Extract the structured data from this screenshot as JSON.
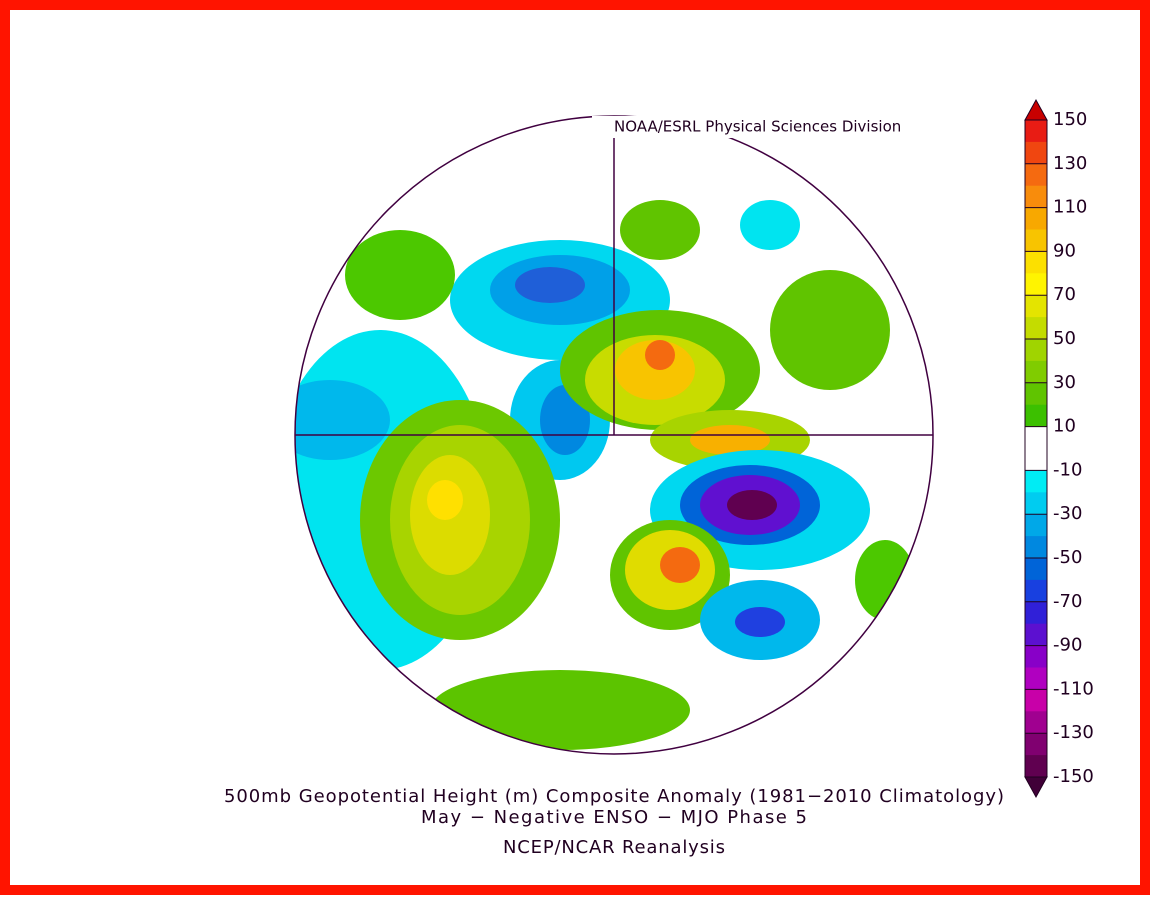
{
  "header": {
    "credit": "NOAA/ESRL Physical Sciences Division"
  },
  "title": [
    "500mb Geopotential Height (m) Composite Anomaly (1981−2010 Climatology)",
    "May − Negative ENSO − MJO Phase 5"
  ],
  "source": "NCEP/NCAR Reanalysis",
  "colorbar": {
    "ticks": [
      150,
      130,
      110,
      90,
      70,
      50,
      30,
      10,
      -10,
      -30,
      -50,
      -70,
      -90,
      -110,
      -130,
      -150
    ],
    "over_color": "#c80000",
    "under_color": "#400038",
    "colors": [
      "#e81c14",
      "#f04610",
      "#f56a10",
      "#f88c0c",
      "#f8a800",
      "#f8c400",
      "#fce000",
      "#fff400",
      "#e4e400",
      "#c4dc00",
      "#a0d400",
      "#80cc00",
      "#60c400",
      "#3cc000",
      "#ffffff",
      "#ffffff",
      "#00ecf4",
      "#00ccf0",
      "#00a8e8",
      "#0088e0",
      "#0064d8",
      "#1840e0",
      "#3020d8",
      "#5c10d0",
      "#8800c8",
      "#b000c0",
      "#c800a8",
      "#a00090",
      "#800070",
      "#600050"
    ]
  }
}
